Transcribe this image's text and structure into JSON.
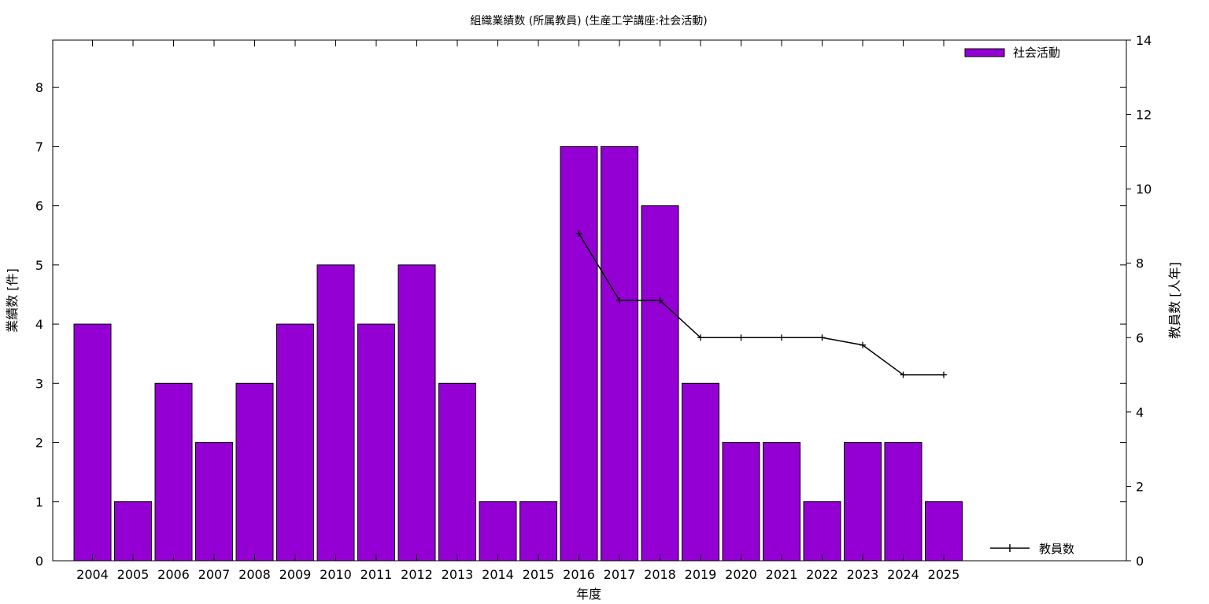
{
  "chart_data": {
    "type": "bar",
    "title": "組織業績数 (所属教員) (生産工学講座:社会活動)",
    "xlabel": "年度",
    "ylabel": "業績数 [件]",
    "y2label": "教員数 [人年]",
    "categories": [
      "2004",
      "2005",
      "2006",
      "2007",
      "2008",
      "2009",
      "2010",
      "2011",
      "2012",
      "2013",
      "2014",
      "2015",
      "2016",
      "2017",
      "2018",
      "2019",
      "2020",
      "2021",
      "2022",
      "2023",
      "2024",
      "2025"
    ],
    "ylim": [
      0,
      8.8
    ],
    "y2lim": [
      0,
      14
    ],
    "yticks": [
      "0",
      "1",
      "2",
      "3",
      "4",
      "5",
      "6",
      "7",
      "8"
    ],
    "y2ticks": [
      "0",
      "2",
      "4",
      "6",
      "8",
      "10",
      "12",
      "14"
    ],
    "series": [
      {
        "name": "社会活動",
        "type": "bar",
        "axis": "left",
        "color": "#9400d3",
        "values": [
          4,
          1,
          3,
          2,
          3,
          4,
          5,
          4,
          5,
          3,
          1,
          1,
          7,
          7,
          6,
          3,
          2,
          2,
          1,
          2,
          2,
          1
        ]
      },
      {
        "name": "教員数",
        "type": "line",
        "axis": "right",
        "color": "#000000",
        "values": [
          null,
          null,
          null,
          null,
          null,
          null,
          null,
          null,
          null,
          null,
          null,
          null,
          8.8,
          7,
          7,
          6,
          6,
          6,
          6,
          5.8,
          5,
          5
        ]
      }
    ],
    "legend": "top-right",
    "grid": false
  }
}
